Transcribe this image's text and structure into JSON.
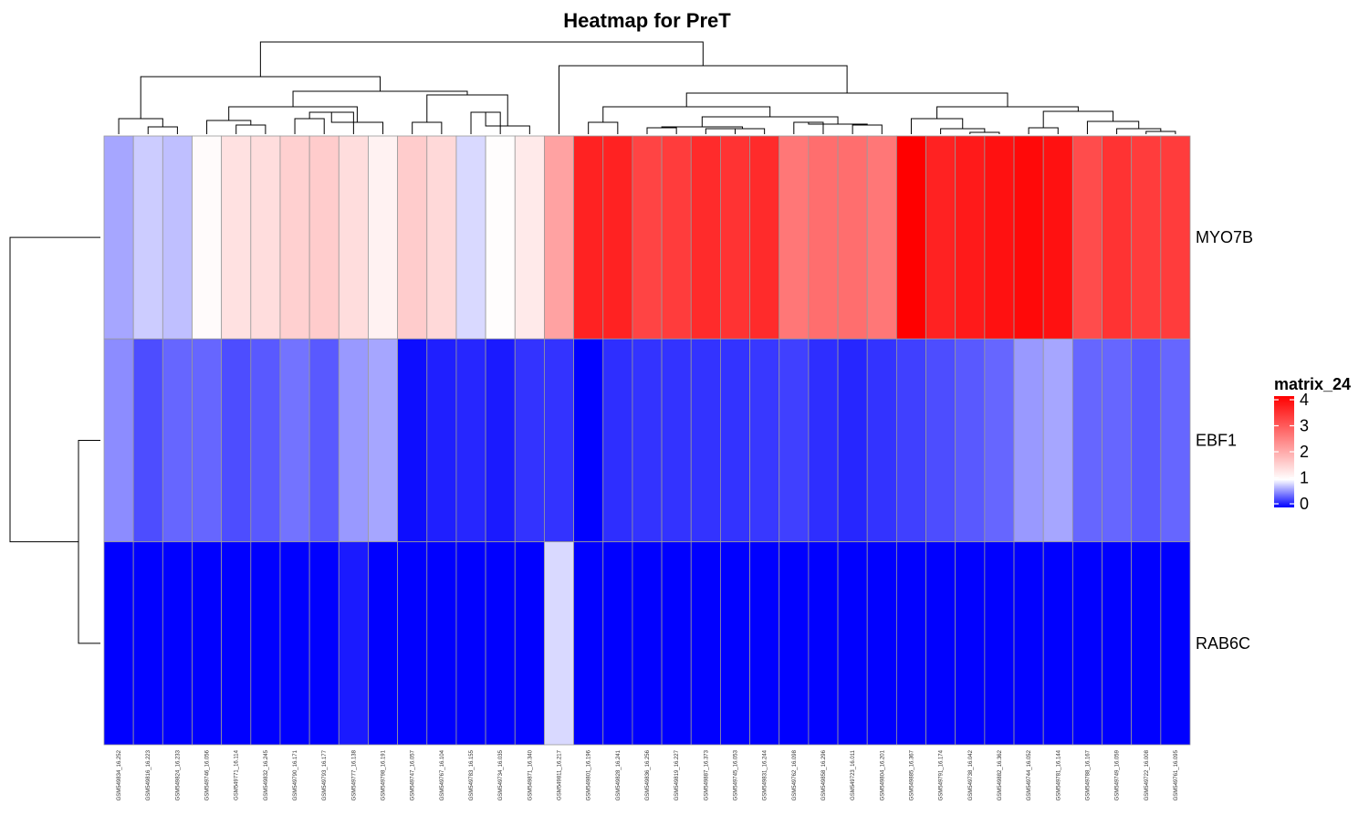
{
  "chart_data": {
    "type": "heatmap",
    "title": "Heatmap for PreT",
    "legend_title": "matrix_24",
    "color_scale": {
      "min": 0,
      "mid": 1,
      "max": 4,
      "low": "#0000ff",
      "midcolor": "#ffffff",
      "high": "#ff0000"
    },
    "legend_ticks": [
      0,
      1,
      2,
      3,
      4
    ],
    "rows": [
      "MYO7B",
      "EBF1",
      "RAB6C"
    ],
    "columns": [
      "GSM549834_16.252",
      "GSM549816_16.223",
      "GSM549824_16.233",
      "GSM549746_16.056",
      "GSM549771_16.114",
      "GSM549832_16.245",
      "GSM549790_16.171",
      "GSM549793_16.177",
      "GSM549777_16.138",
      "GSM549798_16.191",
      "GSM549747_16.057",
      "GSM549767_16.104",
      "GSM549783_16.155",
      "GSM549734_16.035",
      "GSM549871_16.340",
      "GSM549811_16.217",
      "GSM549801_16.196",
      "GSM549828_16.241",
      "GSM549836_16.256",
      "GSM549819_16.227",
      "GSM549887_16.373",
      "GSM549745_16.053",
      "GSM549831_16.244",
      "GSM549762_16.098",
      "GSM549858_16.296",
      "GSM549723_16.011",
      "GSM549804_16.201",
      "GSM549885_16.367",
      "GSM549791_16.174",
      "GSM549738_16.042",
      "GSM549882_16.362",
      "GSM549744_16.052",
      "GSM549781_16.144",
      "GSM549788_16.167",
      "GSM549749_16.059",
      "GSM549722_16.008",
      "GSM549761_16.095"
    ],
    "values": [
      [
        0.65,
        0.8,
        0.75,
        1.05,
        1.35,
        1.4,
        1.55,
        1.6,
        1.4,
        1.15,
        1.6,
        1.45,
        0.85,
        1.02,
        1.25,
        2.1,
        3.6,
        3.6,
        3.2,
        3.3,
        3.5,
        3.4,
        3.5,
        2.6,
        2.7,
        2.7,
        2.6,
        4.0,
        3.6,
        3.7,
        3.8,
        3.9,
        3.8,
        3.1,
        3.4,
        3.3,
        3.3
      ],
      [
        0.55,
        0.3,
        0.4,
        0.4,
        0.3,
        0.35,
        0.45,
        0.35,
        0.6,
        0.65,
        0.05,
        0.12,
        0.15,
        0.1,
        0.2,
        0.2,
        0.0,
        0.18,
        0.2,
        0.2,
        0.2,
        0.2,
        0.22,
        0.25,
        0.18,
        0.15,
        0.2,
        0.25,
        0.3,
        0.35,
        0.4,
        0.6,
        0.65,
        0.4,
        0.4,
        0.35,
        0.4
      ],
      [
        0.0,
        0.0,
        0.0,
        0.0,
        0.0,
        0.0,
        0.0,
        0.0,
        0.1,
        0.0,
        0.0,
        0.0,
        0.0,
        0.0,
        0.0,
        0.85,
        0.0,
        0.0,
        0.0,
        0.0,
        0.0,
        0.0,
        0.0,
        0.0,
        0.0,
        0.0,
        0.0,
        0.0,
        0.0,
        0.0,
        0.0,
        0.0,
        0.0,
        0.0,
        0.0,
        0.0,
        0.0
      ]
    ],
    "column_dendrogram": true,
    "row_dendrogram": true,
    "legend_position": "right"
  }
}
